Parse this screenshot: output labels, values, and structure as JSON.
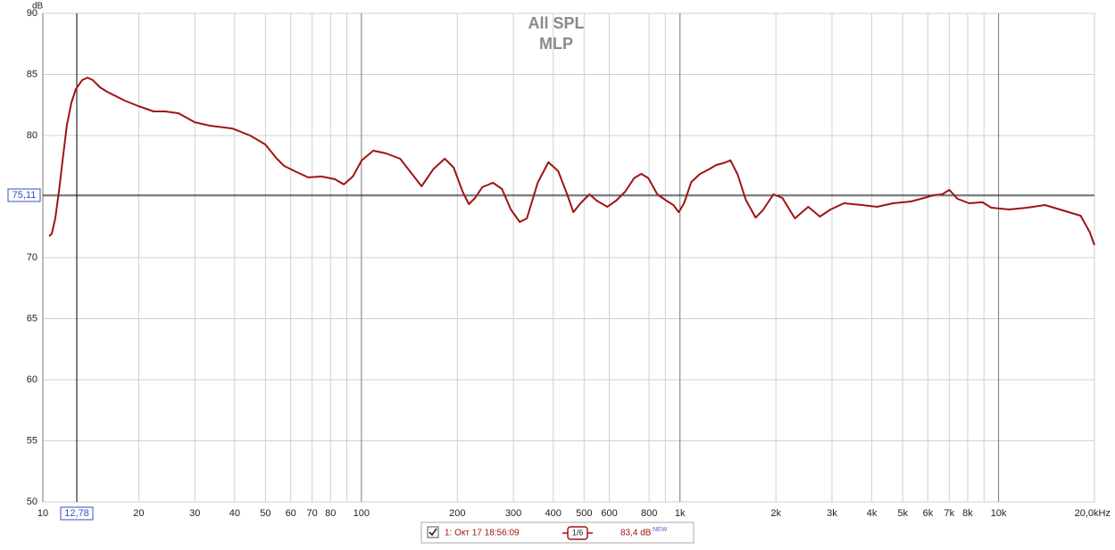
{
  "chart_data": {
    "type": "line",
    "title": "All SPL",
    "subtitle": "MLP",
    "y_label": "dB",
    "log_x": true,
    "grid": true,
    "xlim": [
      10,
      20000
    ],
    "ylim": [
      50,
      90
    ],
    "yticks": [
      50,
      55,
      60,
      65,
      70,
      75,
      80,
      85,
      90
    ],
    "xticks": [
      10,
      20,
      30,
      40,
      50,
      60,
      70,
      80,
      100,
      200,
      300,
      400,
      500,
      600,
      800,
      {
        "value": 1000,
        "label": "1k"
      },
      {
        "value": 2000,
        "label": "2k"
      },
      {
        "value": 3000,
        "label": "3k"
      },
      {
        "value": 4000,
        "label": "4k"
      },
      {
        "value": 5000,
        "label": "5k"
      },
      {
        "value": 6000,
        "label": "6k"
      },
      {
        "value": 7000,
        "label": "7k"
      },
      {
        "value": 8000,
        "label": "8k"
      },
      {
        "value": 10000,
        "label": "10k"
      },
      {
        "value": 20000,
        "label": "20,0kHz"
      }
    ],
    "xminor": [
      90,
      900,
      9000
    ],
    "cursor": {
      "x": 12.78,
      "x_label": "12,78",
      "y": 75.11,
      "y_label": "75,11"
    },
    "series": [
      {
        "name": "1: Окт 17 18:56:09",
        "color": "#a01414",
        "smoothing": "1/6",
        "level": "83,4 dB",
        "badge": "NEW",
        "x": [
          10.46,
          10.67,
          10.94,
          11.23,
          11.53,
          11.9,
          12.29,
          12.7,
          13.28,
          13.81,
          14.35,
          15.12,
          15.92,
          16.98,
          18.11,
          19.95,
          22.27,
          24.22,
          26.68,
          29.97,
          33.44,
          39.29,
          44.71,
          49.9,
          54.27,
          57.14,
          61.74,
          68.03,
          74.94,
          82.55,
          88.08,
          93.93,
          100.2,
          109,
          119.3,
          132.3,
          144.8,
          154.4,
          168,
          182.6,
          194.8,
          207.8,
          217.4,
          227.5,
          239.5,
          258.8,
          276.1,
          294.4,
          314.1,
          330.7,
          357.4,
          386.3,
          414.6,
          442.2,
          462.7,
          487.3,
          519.7,
          547.2,
          591.3,
          630.7,
          672.8,
          717.6,
          755.6,
          795.6,
          848.7,
          905.3,
          953.2,
          990.9,
          1030,
          1085,
          1157,
          1234,
          1300,
          1369,
          1441,
          1518,
          1609,
          1727,
          1818,
          1965,
          2096,
          2294,
          2527,
          2748,
          2970,
          3271,
          3723,
          4153,
          4667,
          5309,
          5848,
          6238,
          6655,
          7006,
          7426,
          8077,
          8897,
          9491,
          10800,
          12290,
          13980,
          15910,
          18100,
          19300,
          20000
        ],
        "values": [
          71.75,
          71.97,
          73.21,
          75.4,
          77.96,
          80.88,
          82.7,
          83.8,
          84.53,
          84.74,
          84.53,
          83.94,
          83.58,
          83.21,
          82.85,
          82.41,
          81.97,
          81.97,
          81.82,
          81.09,
          80.8,
          80.58,
          80,
          79.27,
          78.1,
          77.52,
          77.08,
          76.57,
          76.64,
          76.42,
          75.99,
          76.64,
          77.96,
          78.76,
          78.54,
          78.1,
          76.79,
          75.84,
          77.23,
          78.1,
          77.37,
          75.4,
          74.38,
          74.89,
          75.77,
          76.13,
          75.62,
          73.94,
          72.92,
          73.21,
          76.13,
          77.81,
          77.08,
          75.18,
          73.72,
          74.45,
          75.18,
          74.67,
          74.16,
          74.67,
          75.4,
          76.5,
          76.86,
          76.5,
          75.18,
          74.67,
          74.31,
          73.72,
          74.45,
          76.2,
          76.86,
          77.23,
          77.59,
          77.74,
          77.96,
          76.79,
          74.74,
          73.28,
          73.87,
          75.18,
          74.89,
          73.21,
          74.16,
          73.36,
          73.94,
          74.45,
          74.31,
          74.16,
          74.45,
          74.6,
          74.89,
          75.11,
          75.18,
          75.55,
          74.82,
          74.45,
          74.53,
          74.09,
          73.94,
          74.09,
          74.31,
          73.87,
          73.43,
          72.12,
          71.02
        ]
      }
    ]
  }
}
